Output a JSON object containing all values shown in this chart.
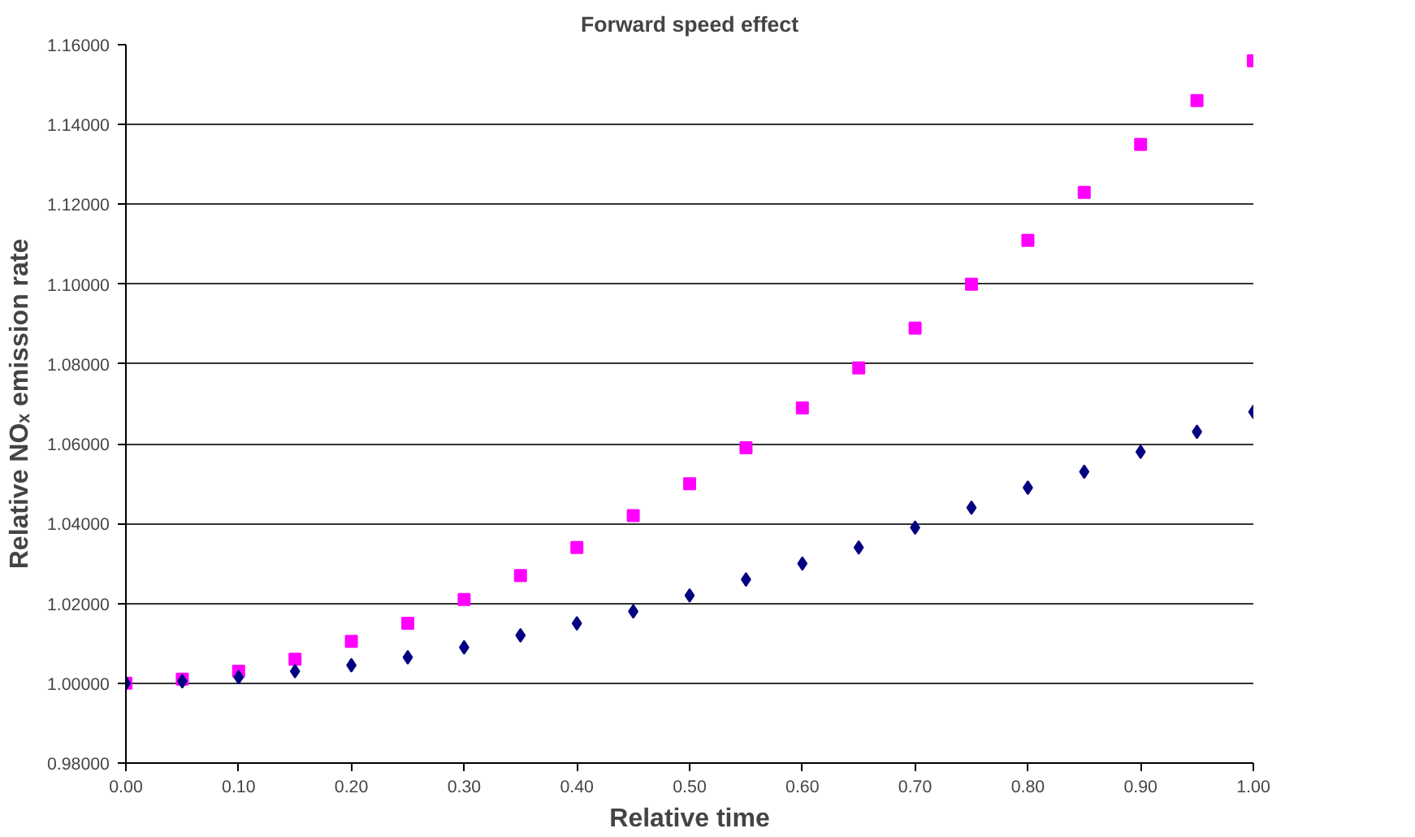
{
  "chart_data": {
    "type": "scatter",
    "title": "Forward speed effect",
    "xlabel": "Relative time",
    "ylabel": "Relative NOₓ emission rate",
    "x": [
      0,
      0.05,
      0.1,
      0.15,
      0.2,
      0.25,
      0.3,
      0.35,
      0.4,
      0.45,
      0.5,
      0.55,
      0.6,
      0.65,
      0.7,
      0.75,
      0.8,
      0.85,
      0.9,
      0.95,
      1.0
    ],
    "series": [
      {
        "color": "#000080",
        "marker": "diamond",
        "values": [
          1.0,
          1.0005,
          1.0015,
          1.003,
          1.0045,
          1.0065,
          1.009,
          1.012,
          1.015,
          1.018,
          1.022,
          1.026,
          1.03,
          1.034,
          1.039,
          1.044,
          1.049,
          1.053,
          1.058,
          1.063,
          1.068
        ]
      },
      {
        "color": "#ff00ff",
        "marker": "square",
        "values": [
          1.0,
          1.001,
          1.003,
          1.006,
          1.0105,
          1.015,
          1.021,
          1.027,
          1.034,
          1.042,
          1.05,
          1.059,
          1.069,
          1.079,
          1.089,
          1.1,
          1.111,
          1.123,
          1.135,
          1.146,
          1.156
        ]
      }
    ],
    "xlim": [
      0,
      1
    ],
    "ylim": [
      0.98,
      1.16
    ],
    "xticks": [
      {
        "value": 0,
        "label": "0.00"
      },
      {
        "value": 0.1,
        "label": "0.10"
      },
      {
        "value": 0.2,
        "label": "0.20"
      },
      {
        "value": 0.3,
        "label": "0.30"
      },
      {
        "value": 0.4,
        "label": "0.40"
      },
      {
        "value": 0.5,
        "label": "0.50"
      },
      {
        "value": 0.6,
        "label": "0.60"
      },
      {
        "value": 0.7,
        "label": "0.70"
      },
      {
        "value": 0.8,
        "label": "0.80"
      },
      {
        "value": 0.9,
        "label": "0.90"
      },
      {
        "value": 1.0,
        "label": "1.00"
      }
    ],
    "yticks": [
      {
        "value": 0.98,
        "label": "0.98000"
      },
      {
        "value": 1.0,
        "label": "1.00000"
      },
      {
        "value": 1.02,
        "label": "1.02000"
      },
      {
        "value": 1.04,
        "label": "1.04000"
      },
      {
        "value": 1.06,
        "label": "1.06000"
      },
      {
        "value": 1.08,
        "label": "1.08000"
      },
      {
        "value": 1.1,
        "label": "1.10000"
      },
      {
        "value": 1.12,
        "label": "1.12000"
      },
      {
        "value": 1.14,
        "label": "1.14000"
      },
      {
        "value": 1.16,
        "label": "1.16000"
      }
    ],
    "grid": "y"
  }
}
